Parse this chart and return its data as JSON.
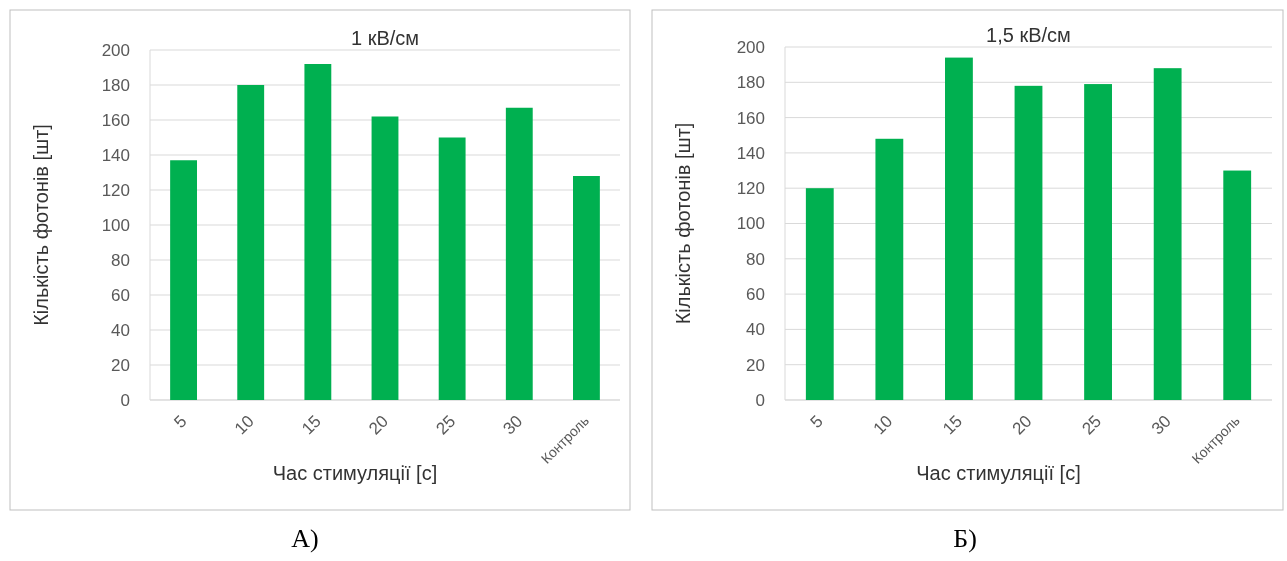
{
  "chart_data": [
    {
      "type": "bar",
      "title": "1  кВ/см",
      "xlabel": "Час стимуляції [с]",
      "ylabel": "Кількість фотонів [шт]",
      "categories": [
        "5",
        "10",
        "15",
        "20",
        "25",
        "30",
        "Контроль"
      ],
      "values": [
        137,
        180,
        192,
        162,
        150,
        167,
        128
      ],
      "color": "#00b050",
      "ylim": [
        0,
        200
      ],
      "yticks": [
        0,
        20,
        40,
        60,
        80,
        100,
        120,
        140,
        160,
        180,
        200
      ],
      "grid": "y",
      "annotations": [
        "А)"
      ]
    },
    {
      "type": "bar",
      "title": "1,5  кВ/см",
      "xlabel": "Час стимуляції [с]",
      "ylabel": "Кількість фотонів [шт]",
      "categories": [
        "5",
        "10",
        "15",
        "20",
        "25",
        "30",
        "Контроль"
      ],
      "values": [
        120,
        148,
        194,
        178,
        179,
        188,
        130
      ],
      "color": "#00b050",
      "ylim": [
        0,
        200
      ],
      "yticks": [
        0,
        20,
        40,
        60,
        80,
        100,
        120,
        140,
        160,
        180,
        200
      ],
      "grid": "y",
      "annotations": [
        "Б)"
      ]
    }
  ]
}
